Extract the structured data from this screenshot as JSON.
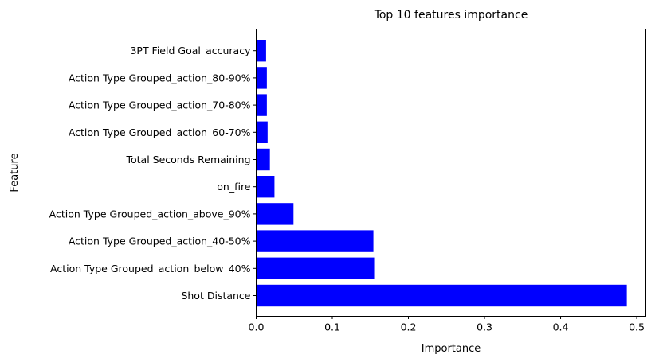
{
  "chart_data": {
    "type": "bar",
    "orientation": "horizontal",
    "title": "Top 10 features importance",
    "xlabel": "Importance",
    "ylabel": "Feature",
    "xlim": [
      0,
      0.512
    ],
    "xticks": [
      0,
      0.1,
      0.2,
      0.3,
      0.4,
      0.5
    ],
    "xtick_labels": [
      "0.0",
      "0.1",
      "0.2",
      "0.3",
      "0.4",
      "0.5"
    ],
    "grid": false,
    "bar_color": "#0000ff",
    "categories": [
      "Shot Distance",
      "Action Type Grouped_action_below_40%",
      "Action Type Grouped_action_40-50%",
      "Action Type Grouped_action_above_90%",
      "on_fire",
      "Total Seconds Remaining",
      "Action Type Grouped_action_60-70%",
      "Action Type Grouped_action_70-80%",
      "Action Type Grouped_action_80-90%",
      "3PT Field Goal_accuracy"
    ],
    "values": [
      0.487,
      0.155,
      0.154,
      0.049,
      0.024,
      0.018,
      0.015,
      0.014,
      0.014,
      0.013
    ]
  }
}
